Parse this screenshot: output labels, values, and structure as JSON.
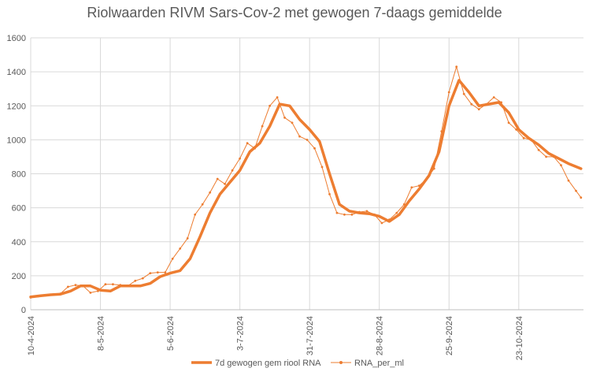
{
  "chart_data": {
    "type": "line",
    "title": "Riolwaarden RIVM Sars-Cov-2 met gewogen 7-daags gemiddelde",
    "xlabel": "",
    "ylabel": "",
    "ylim": [
      0,
      1600
    ],
    "yticks": [
      0,
      200,
      400,
      600,
      800,
      1000,
      1200,
      1400,
      1600
    ],
    "xlim": [
      "2024-04-10",
      "2024-11-18"
    ],
    "xticks": [
      "10-4-2024",
      "8-5-2024",
      "5-6-2024",
      "3-7-2024",
      "31-7-2024",
      "28-8-2024",
      "25-9-2024",
      "23-10-2024"
    ],
    "grid": "vertical and horizontal",
    "legend": "bottom",
    "colors": {
      "accent": "#ED7D31",
      "grid": "#D9D9D9",
      "text": "#595959"
    },
    "series": [
      {
        "name": "7d gewogen gem riool RNA",
        "style": "thick line",
        "x": [
          "2024-04-10",
          "2024-04-14",
          "2024-04-18",
          "2024-04-22",
          "2024-04-26",
          "2024-04-30",
          "2024-05-04",
          "2024-05-08",
          "2024-05-12",
          "2024-05-16",
          "2024-05-20",
          "2024-05-24",
          "2024-05-28",
          "2024-06-01",
          "2024-06-05",
          "2024-06-09",
          "2024-06-13",
          "2024-06-17",
          "2024-06-21",
          "2024-06-25",
          "2024-06-29",
          "2024-07-03",
          "2024-07-07",
          "2024-07-11",
          "2024-07-15",
          "2024-07-19",
          "2024-07-23",
          "2024-07-27",
          "2024-07-31",
          "2024-08-04",
          "2024-08-08",
          "2024-08-12",
          "2024-08-16",
          "2024-08-20",
          "2024-08-24",
          "2024-08-28",
          "2024-09-01",
          "2024-09-05",
          "2024-09-09",
          "2024-09-13",
          "2024-09-17",
          "2024-09-21",
          "2024-09-25",
          "2024-09-29",
          "2024-10-03",
          "2024-10-07",
          "2024-10-11",
          "2024-10-15",
          "2024-10-19",
          "2024-10-23",
          "2024-10-27",
          "2024-10-31",
          "2024-11-04",
          "2024-11-08",
          "2024-11-12",
          "2024-11-17"
        ],
        "y": [
          75,
          82,
          88,
          92,
          110,
          140,
          140,
          115,
          110,
          140,
          140,
          140,
          155,
          195,
          215,
          230,
          300,
          430,
          570,
          680,
          750,
          820,
          930,
          980,
          1080,
          1210,
          1200,
          1120,
          1060,
          990,
          800,
          620,
          580,
          570,
          565,
          550,
          520,
          560,
          640,
          710,
          790,
          930,
          1200,
          1350,
          1280,
          1200,
          1210,
          1220,
          1160,
          1060,
          1010,
          970,
          920,
          890,
          860,
          830
        ]
      },
      {
        "name": "RNA_per_ml",
        "style": "thin line with markers",
        "x": [
          "2024-04-10",
          "2024-04-13",
          "2024-04-16",
          "2024-04-19",
          "2024-04-22",
          "2024-04-25",
          "2024-04-28",
          "2024-05-01",
          "2024-05-04",
          "2024-05-07",
          "2024-05-10",
          "2024-05-13",
          "2024-05-16",
          "2024-05-19",
          "2024-05-22",
          "2024-05-25",
          "2024-05-28",
          "2024-05-31",
          "2024-06-03",
          "2024-06-06",
          "2024-06-09",
          "2024-06-12",
          "2024-06-15",
          "2024-06-18",
          "2024-06-21",
          "2024-06-24",
          "2024-06-27",
          "2024-06-30",
          "2024-07-03",
          "2024-07-06",
          "2024-07-09",
          "2024-07-12",
          "2024-07-15",
          "2024-07-18",
          "2024-07-21",
          "2024-07-24",
          "2024-07-27",
          "2024-07-30",
          "2024-08-02",
          "2024-08-05",
          "2024-08-08",
          "2024-08-11",
          "2024-08-14",
          "2024-08-17",
          "2024-08-20",
          "2024-08-23",
          "2024-08-26",
          "2024-08-29",
          "2024-09-01",
          "2024-09-04",
          "2024-09-07",
          "2024-09-10",
          "2024-09-13",
          "2024-09-16",
          "2024-09-19",
          "2024-09-22",
          "2024-09-25",
          "2024-09-28",
          "2024-10-01",
          "2024-10-04",
          "2024-10-07",
          "2024-10-10",
          "2024-10-13",
          "2024-10-16",
          "2024-10-19",
          "2024-10-22",
          "2024-10-25",
          "2024-10-28",
          "2024-10-31",
          "2024-11-03",
          "2024-11-06",
          "2024-11-09",
          "2024-11-12",
          "2024-11-15",
          "2024-11-17"
        ],
        "y": [
          72,
          80,
          85,
          90,
          95,
          135,
          145,
          140,
          100,
          110,
          150,
          150,
          145,
          140,
          170,
          185,
          215,
          220,
          220,
          300,
          360,
          420,
          560,
          620,
          690,
          770,
          740,
          820,
          890,
          980,
          950,
          1080,
          1200,
          1250,
          1130,
          1100,
          1020,
          1000,
          950,
          840,
          680,
          570,
          560,
          560,
          575,
          580,
          560,
          510,
          530,
          570,
          620,
          720,
          730,
          770,
          830,
          1050,
          1280,
          1430,
          1270,
          1210,
          1180,
          1210,
          1250,
          1220,
          1100,
          1060,
          1010,
          1000,
          940,
          900,
          900,
          850,
          760,
          700,
          660
        ]
      }
    ]
  }
}
